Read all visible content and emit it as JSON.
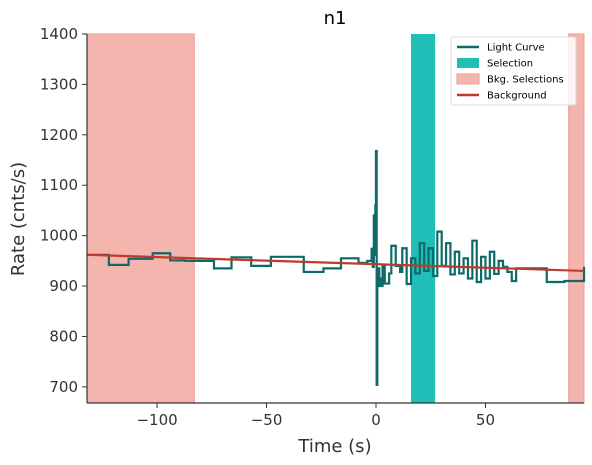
{
  "chart_data": {
    "type": "line",
    "title": "n1",
    "xlabel": "Time (s)",
    "ylabel": "Rate (cnts/s)",
    "xlim": [
      -132,
      95
    ],
    "ylim": [
      668,
      1400
    ],
    "xticks": [
      -100,
      -50,
      0,
      50
    ],
    "xtick_labels": [
      "−100",
      "−50",
      "0",
      "50"
    ],
    "yticks": [
      700,
      800,
      900,
      1000,
      1100,
      1200,
      1300,
      1400
    ],
    "ytick_labels": [
      "700",
      "800",
      "900",
      "1000",
      "1100",
      "1200",
      "1300",
      "1400"
    ],
    "grid": false,
    "legend_position": "top-right",
    "colors": {
      "light_curve": "#0c6b68",
      "selection": "#1fbfb8",
      "bkg_selection": "#f4b5af",
      "background": "#c0392b",
      "axis": "#333333"
    },
    "legend": [
      {
        "label": "Light Curve",
        "kind": "line",
        "color": "#0c6b68"
      },
      {
        "label": "Selection",
        "kind": "patch",
        "color": "#1fbfb8"
      },
      {
        "label": "Bkg. Selections",
        "kind": "patch",
        "color": "#f4b5af"
      },
      {
        "label": "Background",
        "kind": "line",
        "color": "#c0392b"
      }
    ],
    "series": [
      {
        "name": "Light Curve",
        "type": "step",
        "x": [
          -132,
          -122,
          -113,
          -102,
          -94,
          -87,
          -74,
          -66,
          -57,
          -48,
          -42,
          -33,
          -24,
          -16,
          -8,
          -4,
          -2,
          -1.5,
          -1,
          -0.6,
          -0.3,
          0,
          0.3,
          0.6,
          1,
          1.5,
          2,
          3,
          4,
          6,
          7,
          9,
          11,
          12,
          14,
          16,
          18,
          20,
          22,
          24,
          26,
          28,
          30,
          32,
          34,
          36,
          38,
          40,
          42,
          44,
          46,
          48,
          50,
          52,
          54,
          56,
          58,
          60,
          62,
          64,
          70,
          78,
          86,
          95
        ],
        "y": [
          962,
          942,
          954,
          965,
          951,
          950,
          935,
          957,
          940,
          958,
          958,
          928,
          935,
          955,
          946,
          950,
          974,
          938,
          1040,
          962,
          1060,
          1168,
          704,
          900,
          935,
          915,
          900,
          940,
          905,
          925,
          980,
          940,
          928,
          975,
          904,
          955,
          925,
          985,
          930,
          975,
          920,
          1008,
          940,
          985,
          923,
          968,
          925,
          955,
          915,
          990,
          908,
          958,
          915,
          968,
          924,
          950,
          938,
          928,
          910,
          935,
          935,
          908,
          910,
          938
        ]
      },
      {
        "name": "Background",
        "type": "line",
        "x": [
          -132,
          95
        ],
        "y": [
          962,
          930
        ]
      }
    ],
    "spans": [
      {
        "name": "Bkg. Selections",
        "x0": -132,
        "x1": -83
      },
      {
        "name": "Selection",
        "x0": 16,
        "x1": 27
      },
      {
        "name": "Bkg. Selections",
        "x0": 88,
        "x1": 95
      }
    ]
  }
}
